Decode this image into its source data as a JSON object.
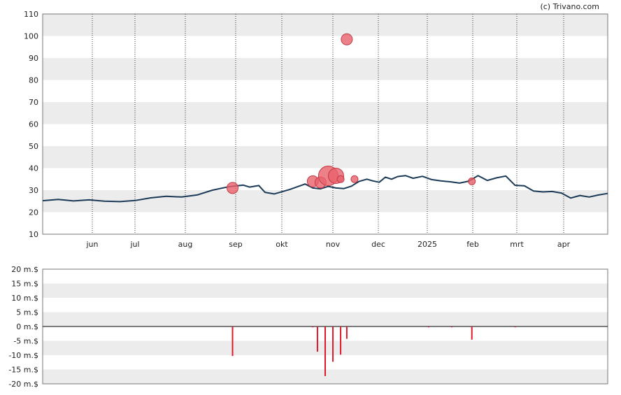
{
  "credit": "(c) Trivano.com",
  "chart_data": [
    {
      "type": "line",
      "title": "",
      "x_ticks": [
        "jun",
        "jul",
        "aug",
        "sep",
        "okt",
        "nov",
        "dec",
        "2025",
        "feb",
        "mrt",
        "apr"
      ],
      "y_ticks": [
        "10",
        "20",
        "30",
        "40",
        "50",
        "60",
        "70",
        "80",
        "90",
        "100",
        "110"
      ],
      "ylim": [
        10,
        110
      ],
      "grid": "horizontal bands, dotted vertical month lines",
      "line_color": "#1b3a57",
      "series": [
        {
          "x": [
            0,
            10,
            20,
            30,
            40,
            50,
            60,
            70,
            80,
            90,
            100,
            110,
            120,
            130,
            134,
            140,
            144,
            150,
            160,
            170,
            175,
            180,
            185,
            190,
            195,
            200,
            205,
            210,
            214,
            218,
            222,
            226,
            230,
            235,
            240,
            246,
            252,
            258,
            264,
            270,
            276,
            282,
            288,
            294,
            300,
            306,
            312,
            318,
            324,
            330,
            336,
            342,
            348,
            354,
            360,
            366
          ],
          "values": [
            25.2,
            25.8,
            25.1,
            25.6,
            25.0,
            24.8,
            25.3,
            26.5,
            27.2,
            26.9,
            27.8,
            30.0,
            31.5,
            32.3,
            31.4,
            32.1,
            29.0,
            28.3,
            30.3,
            32.8,
            31.0,
            30.6,
            31.7,
            31.0,
            30.7,
            31.8,
            34.0,
            35.0,
            34.2,
            33.6,
            35.9,
            35.0,
            36.2,
            36.6,
            35.4,
            36.3,
            34.8,
            34.2,
            33.8,
            33.2,
            34.1,
            36.6,
            34.4,
            35.6,
            36.4,
            32.2,
            32.0,
            29.6,
            29.2,
            29.4,
            28.7,
            26.4,
            27.6,
            26.9,
            27.8,
            28.5
          ]
        }
      ],
      "bubbles": {
        "color": "#e8616b",
        "points": [
          {
            "x": 123,
            "y": 31.0,
            "size": 2
          },
          {
            "x": 175,
            "y": 34.0,
            "size": 2
          },
          {
            "x": 180,
            "y": 33.5,
            "size": 2
          },
          {
            "x": 185,
            "y": 36.5,
            "size": 4
          },
          {
            "x": 190,
            "y": 36.5,
            "size": 3
          },
          {
            "x": 197,
            "y": 98.5,
            "size": 2
          },
          {
            "x": 193,
            "y": 35.0,
            "size": 1
          },
          {
            "x": 202,
            "y": 35.0,
            "size": 1
          },
          {
            "x": 278,
            "y": 34.0,
            "size": 1
          }
        ]
      }
    },
    {
      "type": "bar",
      "title": "",
      "y_ticks": [
        "20 m.$",
        "15 m.$",
        "10 m.$",
        "5 m.$",
        "0 m.$",
        "-5 m.$",
        "-10 m.$",
        "-15 m.$",
        "-20 m.$"
      ],
      "ylim": [
        -20,
        20
      ],
      "grid": "horizontal bands",
      "bar_color": "#e0192a",
      "bars": [
        {
          "x": 123,
          "value": -10.3
        },
        {
          "x": 175,
          "value": -0.3
        },
        {
          "x": 178,
          "value": -8.8
        },
        {
          "x": 183,
          "value": -17.3
        },
        {
          "x": 188,
          "value": -12.3
        },
        {
          "x": 193,
          "value": -9.8
        },
        {
          "x": 197,
          "value": -4.3
        },
        {
          "x": 250,
          "value": -0.3
        },
        {
          "x": 265,
          "value": -0.3
        },
        {
          "x": 278,
          "value": -4.6
        },
        {
          "x": 306,
          "value": -0.3
        }
      ]
    }
  ]
}
